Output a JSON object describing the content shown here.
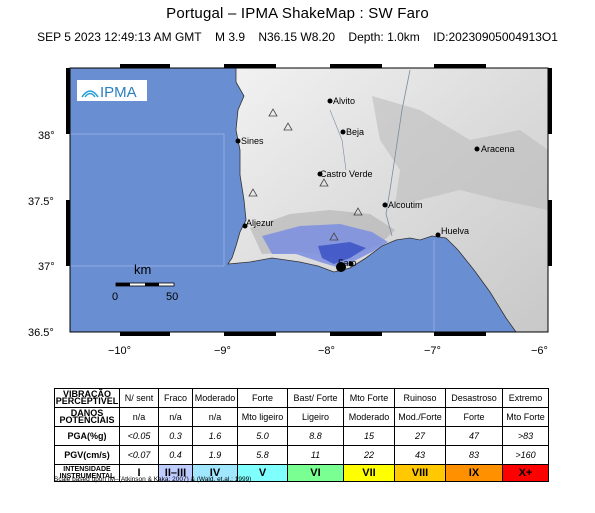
{
  "header": {
    "title": "Portugal – IPMA ShakeMap : SW Faro",
    "datetime": "SEP 5 2023 12:49:13 AM GMT",
    "magnitude": "M 3.9",
    "location": "N36.15 W8.20",
    "depth": "Depth: 1.0km",
    "event_id": "ID:20230905004913O1"
  },
  "map": {
    "logo_text": "IPMA",
    "x_ticks": [
      "−10°",
      "−9°",
      "−8°",
      "−7°",
      "−6°"
    ],
    "y_ticks": [
      "38°",
      "37.5°",
      "37°",
      "36.5°"
    ],
    "scalebar": {
      "unit": "km",
      "min_label": "0",
      "max_label": "50"
    },
    "cities": [
      "Alvito",
      "Beja",
      "Sines",
      "Castro Verde",
      "Aracena",
      "Alcoutim",
      "Huelva",
      "Aljezur",
      "Faro"
    ],
    "colors": {
      "sea": "#6a8ed2",
      "land": "#e8e8e8",
      "shaking": "#7b8ee0"
    }
  },
  "legend": {
    "row_headers": [
      "VIBRAÇÃO PERCEPTIVEL",
      "DANOS POTENCIAIS",
      "PGA(%g)",
      "PGV(cm/s)",
      "INTENSIDADE INSTRUMENTAL"
    ],
    "perceived": [
      "N/ sent",
      "Fraco",
      "Moderado",
      "Forte",
      "Bast/ Forte",
      "Mto Forte",
      "Ruinoso",
      "Desastroso",
      "Extremo"
    ],
    "damage": [
      "n/a",
      "n/a",
      "n/a",
      "Mto ligeiro",
      "Ligeiro",
      "Moderado",
      "Mod./Forte",
      "Forte",
      "Mto Forte"
    ],
    "pga": [
      "<0.05",
      "0.3",
      "1.6",
      "5.0",
      "8.8",
      "15",
      "27",
      "47",
      ">83"
    ],
    "pgv": [
      "<0.07",
      "0.4",
      "1.9",
      "5.8",
      "11",
      "22",
      "43",
      "83",
      ">160"
    ],
    "intensity": [
      "I",
      "II–III",
      "IV",
      "V",
      "VI",
      "VII",
      "VIII",
      "IX",
      "X+"
    ],
    "intensity_colors": [
      "#ffffff",
      "#bfccff",
      "#a0e6ff",
      "#80ffff",
      "#7aff93",
      "#ffff00",
      "#ffc800",
      "#ff9100",
      "#ff0000"
    ]
  },
  "footnote": "Scale based upon IM–(Atkinson & Kaka; 2007) & (Wald, et.al.; 1999)"
}
